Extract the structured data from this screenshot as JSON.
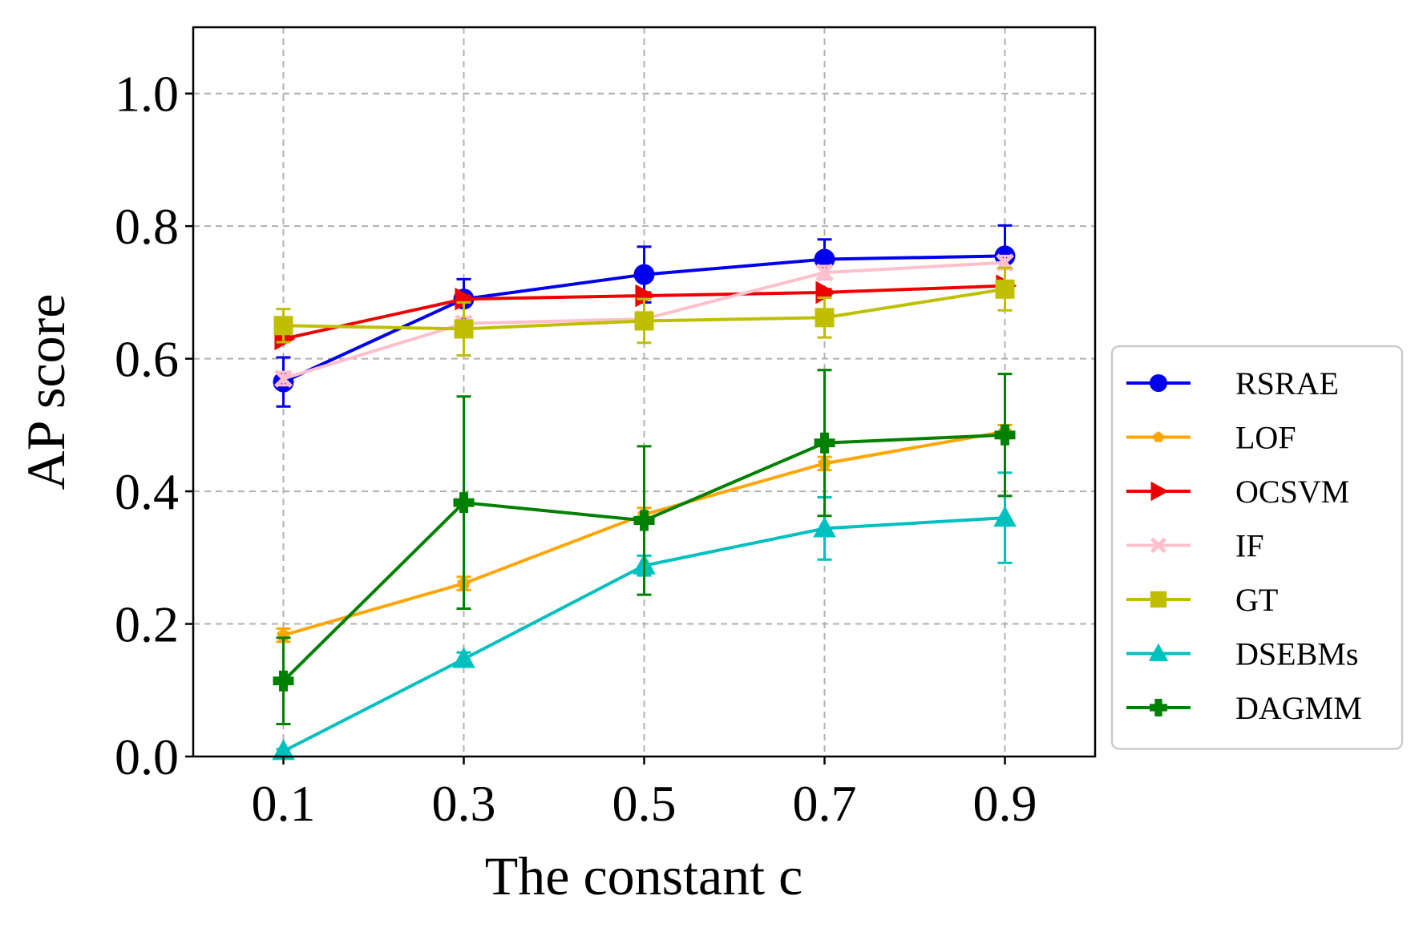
{
  "chart_data": {
    "type": "line",
    "title": "",
    "xlabel": "The constant c",
    "ylabel": "AP score",
    "x": [
      0.1,
      0.3,
      0.5,
      0.7,
      0.9
    ],
    "x_tick_labels": [
      "0.1",
      "0.3",
      "0.5",
      "0.7",
      "0.9"
    ],
    "xlim": [
      0.0,
      1.0
    ],
    "ylim": [
      0.0,
      1.1
    ],
    "y_ticks": [
      0.0,
      0.2,
      0.4,
      0.6,
      0.8,
      1.0
    ],
    "y_tick_labels": [
      "0.0",
      "0.2",
      "0.4",
      "0.6",
      "0.8",
      "1.0"
    ],
    "grid": true,
    "legend_position": "outside-right",
    "series": [
      {
        "name": "RSRAE",
        "color": "#0000ee",
        "marker": "circle",
        "values": [
          0.565,
          0.69,
          0.727,
          0.75,
          0.755
        ],
        "errors": [
          0.037,
          0.03,
          0.042,
          0.03,
          0.046
        ]
      },
      {
        "name": "LOF",
        "color": "#ffa500",
        "marker": "pentagon",
        "values": [
          0.183,
          0.261,
          0.365,
          0.442,
          0.49
        ],
        "errors": [
          0.01,
          0.01,
          0.01,
          0.01,
          0.01
        ]
      },
      {
        "name": "OCSVM",
        "color": "#ee0000",
        "marker": "triangle-right",
        "values": [
          0.63,
          0.69,
          0.695,
          0.7,
          0.71
        ],
        "errors": [
          0.005,
          0.005,
          0.005,
          0.005,
          0.005
        ]
      },
      {
        "name": "IF",
        "color": "#ffc0cb",
        "marker": "x",
        "values": [
          0.57,
          0.653,
          0.66,
          0.73,
          0.745
        ],
        "errors": [
          0.01,
          0.01,
          0.01,
          0.01,
          0.01
        ]
      },
      {
        "name": "GT",
        "color": "#bfbf00",
        "marker": "square",
        "values": [
          0.65,
          0.645,
          0.657,
          0.662,
          0.705
        ],
        "errors": [
          0.025,
          0.04,
          0.033,
          0.03,
          0.032
        ]
      },
      {
        "name": "DSEBMs",
        "color": "#00bfbf",
        "marker": "triangle-up",
        "values": [
          0.008,
          0.147,
          0.288,
          0.344,
          0.36
        ],
        "errors": [
          0.003,
          0.01,
          0.015,
          0.047,
          0.068
        ]
      },
      {
        "name": "DAGMM",
        "color": "#008000",
        "marker": "plus",
        "values": [
          0.114,
          0.383,
          0.356,
          0.473,
          0.485
        ],
        "errors": [
          0.065,
          0.16,
          0.112,
          0.11,
          0.092
        ]
      }
    ]
  }
}
